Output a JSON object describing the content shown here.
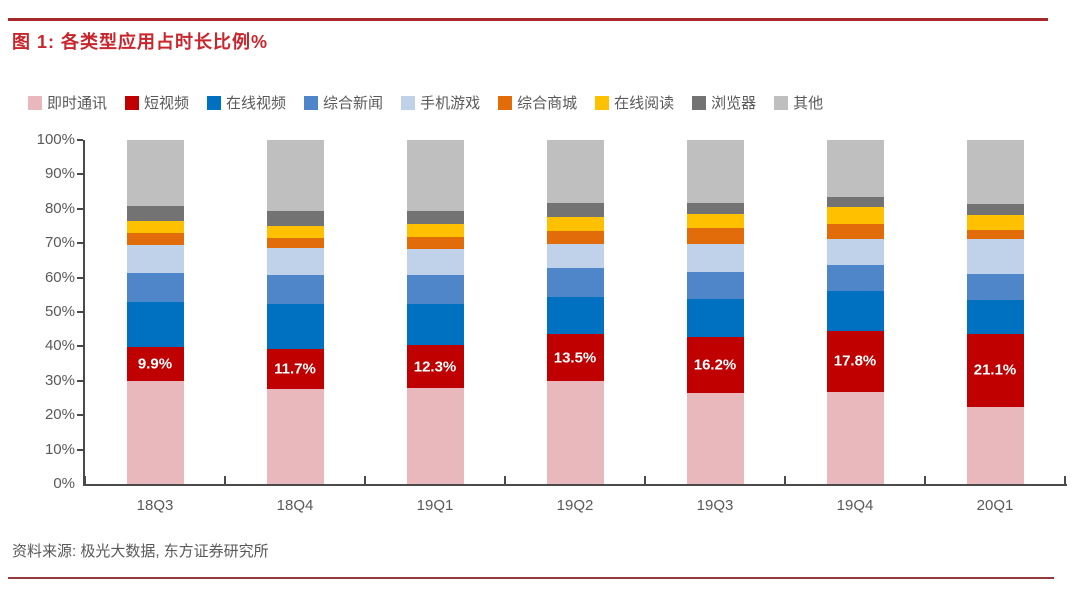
{
  "page": {
    "title": "图 1: 各类型应用占时长比例%",
    "source": "资料来源: 极光大数据, 东方证券研究所"
  },
  "colors": {
    "title_red": "#c9252d",
    "top_rule": "#a8272b",
    "bottom_rule": "#96393d",
    "axis_line": "#4a4a4a",
    "axis_text": "#595959",
    "bar_label_text": "#ffffff"
  },
  "chart_data": {
    "type": "bar",
    "stacked": true,
    "orientation": "vertical",
    "title": "各类型应用占时长比例%",
    "xlabel": "",
    "ylabel": "",
    "ylim": [
      0,
      100
    ],
    "grid": false,
    "legend_position": "top",
    "y_ticks": [
      "0%",
      "10%",
      "20%",
      "30%",
      "40%",
      "50%",
      "60%",
      "70%",
      "80%",
      "90%",
      "100%"
    ],
    "categories": [
      "18Q3",
      "18Q4",
      "19Q1",
      "19Q2",
      "19Q3",
      "19Q4",
      "20Q1"
    ],
    "series": [
      {
        "name": "即时通讯",
        "color": "#e8b8bd",
        "values": [
          30.0,
          27.5,
          28.0,
          30.0,
          26.5,
          26.8,
          22.5
        ]
      },
      {
        "name": "短视频",
        "color": "#c00000",
        "values": [
          9.9,
          11.7,
          12.3,
          13.5,
          16.2,
          17.8,
          21.1
        ],
        "data_labels": [
          "9.9%",
          "11.7%",
          "12.3%",
          "13.5%",
          "16.2%",
          "17.8%",
          "21.1%"
        ]
      },
      {
        "name": "在线视频",
        "color": "#0070c0",
        "values": [
          13.0,
          13.2,
          12.0,
          11.0,
          11.0,
          11.5,
          10.0
        ]
      },
      {
        "name": "综合新闻",
        "color": "#4f86ca",
        "values": [
          8.4,
          8.4,
          8.6,
          8.3,
          8.0,
          7.6,
          7.6
        ]
      },
      {
        "name": "手机游戏",
        "color": "#bfd2ea",
        "values": [
          8.3,
          7.8,
          7.4,
          6.9,
          8.0,
          7.4,
          10.1
        ]
      },
      {
        "name": "综合商城",
        "color": "#e36c0a",
        "values": [
          3.4,
          3.0,
          3.4,
          3.9,
          4.7,
          4.4,
          2.6
        ]
      },
      {
        "name": "在线阅读",
        "color": "#ffc000",
        "values": [
          3.5,
          3.4,
          3.9,
          4.1,
          4.1,
          5.1,
          4.2
        ]
      },
      {
        "name": "浏览器",
        "color": "#737373",
        "values": [
          4.4,
          4.4,
          3.9,
          4.0,
          3.3,
          2.9,
          3.3
        ]
      },
      {
        "name": "其他",
        "color": "#bfbfbf",
        "values": [
          19.1,
          20.6,
          20.5,
          18.3,
          18.2,
          16.5,
          18.6
        ]
      }
    ]
  }
}
